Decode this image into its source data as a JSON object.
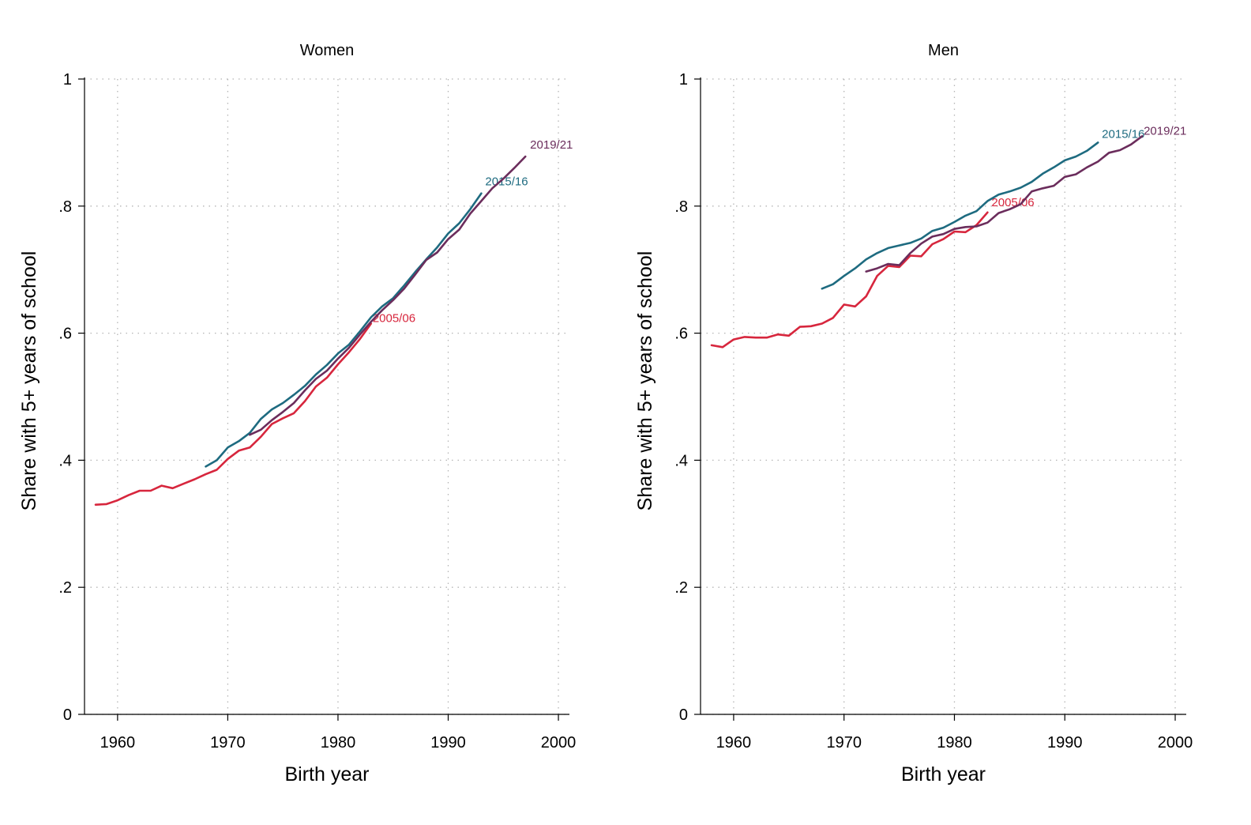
{
  "chart_data": [
    {
      "type": "line",
      "title": "Women",
      "xlabel": "Birth year",
      "ylabel": "Share with 5+ years of school",
      "xlim": [
        1957,
        2001
      ],
      "ylim": [
        0,
        1
      ],
      "xticks": [
        1960,
        1970,
        1980,
        1990,
        2000
      ],
      "xtick_labels": [
        "1960",
        "1970",
        "1980",
        "1990",
        "2000"
      ],
      "yticks": [
        0,
        0.2,
        0.4,
        0.6,
        0.8,
        1
      ],
      "ytick_labels": [
        "0",
        ".2",
        ".4",
        ".6",
        ".8",
        "1"
      ],
      "grid": true,
      "legend": "none",
      "series": [
        {
          "name": "2005/06",
          "color": "#d7263d",
          "x": [
            1958,
            1959,
            1960,
            1961,
            1962,
            1963,
            1964,
            1965,
            1966,
            1967,
            1968,
            1969,
            1970,
            1971,
            1972,
            1973,
            1974,
            1975,
            1976,
            1977,
            1978,
            1979,
            1980,
            1981,
            1982,
            1983
          ],
          "y": [
            0.33,
            0.331,
            0.337,
            0.345,
            0.352,
            0.352,
            0.36,
            0.356,
            0.363,
            0.37,
            0.378,
            0.385,
            0.402,
            0.415,
            0.42,
            0.437,
            0.457,
            0.466,
            0.474,
            0.493,
            0.516,
            0.53,
            0.551,
            0.57,
            0.591,
            0.615
          ]
        },
        {
          "name": "2015/16",
          "color": "#1e6b80",
          "x": [
            1968,
            1969,
            1970,
            1971,
            1972,
            1973,
            1974,
            1975,
            1976,
            1977,
            1978,
            1979,
            1980,
            1981,
            1982,
            1983,
            1984,
            1985,
            1986,
            1987,
            1988,
            1989,
            1990,
            1991,
            1992,
            1993
          ],
          "y": [
            0.39,
            0.4,
            0.42,
            0.43,
            0.443,
            0.465,
            0.48,
            0.49,
            0.503,
            0.517,
            0.535,
            0.55,
            0.568,
            0.582,
            0.603,
            0.625,
            0.642,
            0.655,
            0.675,
            0.696,
            0.716,
            0.735,
            0.757,
            0.773,
            0.795,
            0.82
          ]
        },
        {
          "name": "2019/21",
          "color": "#6b2d5c",
          "x": [
            1972,
            1973,
            1974,
            1975,
            1976,
            1977,
            1978,
            1979,
            1980,
            1981,
            1982,
            1983,
            1984,
            1985,
            1986,
            1987,
            1988,
            1989,
            1990,
            1991,
            1992,
            1993,
            1994,
            1995,
            1996,
            1997
          ],
          "y": [
            0.44,
            0.448,
            0.463,
            0.476,
            0.49,
            0.51,
            0.528,
            0.541,
            0.56,
            0.577,
            0.598,
            0.618,
            0.636,
            0.652,
            0.67,
            0.692,
            0.715,
            0.727,
            0.748,
            0.763,
            0.788,
            0.808,
            0.828,
            0.843,
            0.86,
            0.878
          ]
        }
      ]
    },
    {
      "type": "line",
      "title": "Men",
      "xlabel": "Birth year",
      "ylabel": "Share with 5+ years of school",
      "xlim": [
        1957,
        2001
      ],
      "ylim": [
        0,
        1
      ],
      "xticks": [
        1960,
        1970,
        1980,
        1990,
        2000
      ],
      "xtick_labels": [
        "1960",
        "1970",
        "1980",
        "1990",
        "2000"
      ],
      "yticks": [
        0,
        0.2,
        0.4,
        0.6,
        0.8,
        1
      ],
      "ytick_labels": [
        "0",
        ".2",
        ".4",
        ".6",
        ".8",
        "1"
      ],
      "grid": true,
      "legend": "none",
      "series": [
        {
          "name": "2005/06",
          "color": "#d7263d",
          "x": [
            1958,
            1959,
            1960,
            1961,
            1962,
            1963,
            1964,
            1965,
            1966,
            1967,
            1968,
            1969,
            1970,
            1971,
            1972,
            1973,
            1974,
            1975,
            1976,
            1977,
            1978,
            1979,
            1980,
            1981,
            1982,
            1983
          ],
          "y": [
            0.581,
            0.578,
            0.59,
            0.594,
            0.593,
            0.593,
            0.598,
            0.596,
            0.61,
            0.611,
            0.615,
            0.624,
            0.645,
            0.642,
            0.658,
            0.69,
            0.706,
            0.704,
            0.722,
            0.721,
            0.74,
            0.748,
            0.76,
            0.759,
            0.77,
            0.79
          ]
        },
        {
          "name": "2015/16",
          "color": "#1e6b80",
          "x": [
            1968,
            1969,
            1970,
            1971,
            1972,
            1973,
            1974,
            1975,
            1976,
            1977,
            1978,
            1979,
            1980,
            1981,
            1982,
            1983,
            1984,
            1985,
            1986,
            1987,
            1988,
            1989,
            1990,
            1991,
            1992,
            1993
          ],
          "y": [
            0.67,
            0.677,
            0.69,
            0.702,
            0.716,
            0.726,
            0.734,
            0.738,
            0.742,
            0.749,
            0.761,
            0.766,
            0.775,
            0.785,
            0.792,
            0.808,
            0.818,
            0.823,
            0.829,
            0.838,
            0.851,
            0.861,
            0.872,
            0.878,
            0.887,
            0.9
          ]
        },
        {
          "name": "2019/21",
          "color": "#6b2d5c",
          "x": [
            1972,
            1973,
            1974,
            1975,
            1976,
            1977,
            1978,
            1979,
            1980,
            1981,
            1982,
            1983,
            1984,
            1985,
            1986,
            1987,
            1988,
            1989,
            1990,
            1991,
            1992,
            1993,
            1994,
            1995,
            1996,
            1997
          ],
          "y": [
            0.697,
            0.702,
            0.709,
            0.707,
            0.726,
            0.741,
            0.752,
            0.756,
            0.764,
            0.767,
            0.768,
            0.774,
            0.789,
            0.795,
            0.803,
            0.823,
            0.828,
            0.832,
            0.846,
            0.85,
            0.861,
            0.87,
            0.884,
            0.888,
            0.897,
            0.91
          ]
        }
      ]
    }
  ]
}
